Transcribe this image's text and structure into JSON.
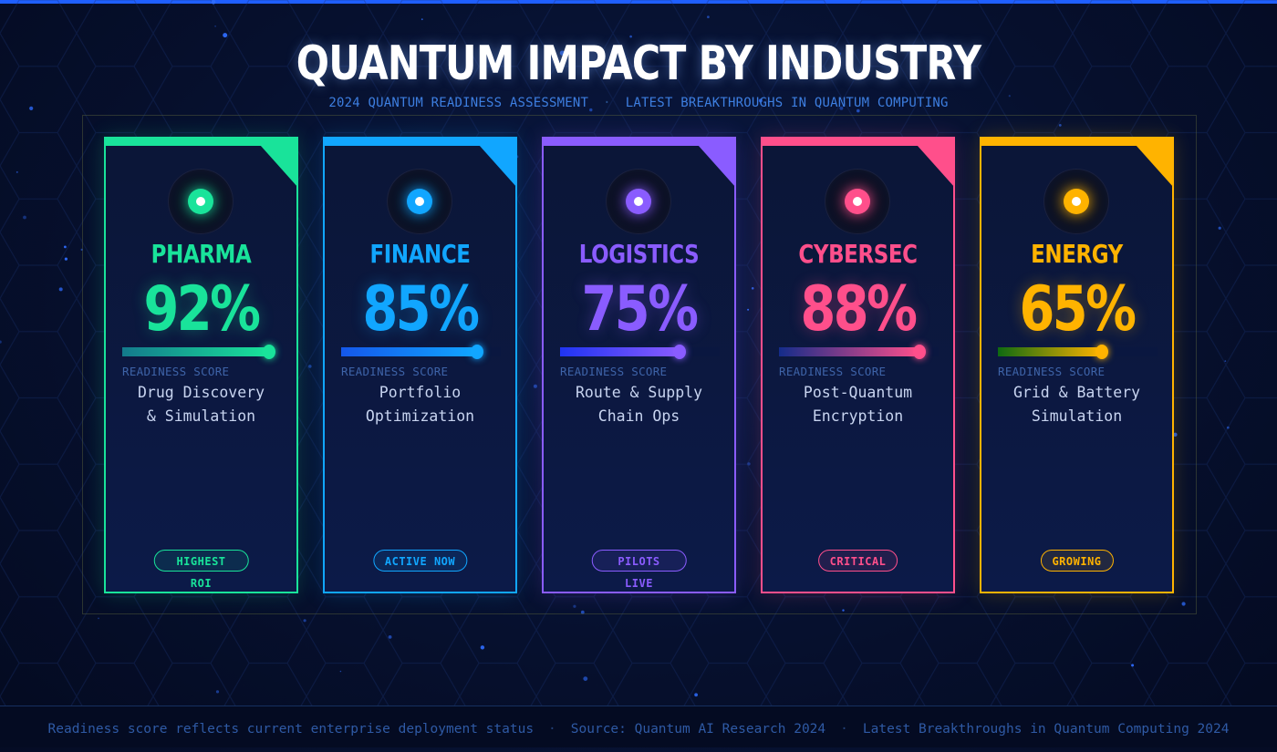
{
  "title": "QUANTUM IMPACT BY INDUSTRY",
  "subtitle": {
    "left": "2024 QUANTUM READINESS ASSESSMENT",
    "separator": "·",
    "right": "LATEST BREAKTHROUGHS IN QUANTUM COMPUTING"
  },
  "score_label": "READINESS SCORE",
  "chart_data": {
    "type": "bar",
    "title": "QUANTUM IMPACT BY INDUSTRY",
    "categories": [
      "PHARMA",
      "FINANCE",
      "LOGISTICS",
      "CYBERSEC",
      "ENERGY"
    ],
    "values": [
      92,
      85,
      75,
      88,
      65
    ],
    "value_suffix": "%",
    "ylim": [
      0,
      100
    ]
  },
  "cards": [
    {
      "name": "PHARMA",
      "score": "92%",
      "value": 92,
      "desc1": "Drug Discovery",
      "desc2": "& Simulation",
      "badge": "HIGHEST ROI",
      "color": "#19e39a",
      "color_start": "#137a8c"
    },
    {
      "name": "FINANCE",
      "score": "85%",
      "value": 85,
      "desc1": "Portfolio",
      "desc2": "Optimization",
      "badge": "ACTIVE NOW",
      "color": "#11a6ff",
      "color_start": "#1457ea"
    },
    {
      "name": "LOGISTICS",
      "score": "75%",
      "value": 75,
      "desc1": "Route & Supply",
      "desc2": "Chain Ops",
      "badge": "PILOTS LIVE",
      "color": "#8a5cff",
      "color_start": "#1f34f2"
    },
    {
      "name": "CYBERSEC",
      "score": "88%",
      "value": 88,
      "desc1": "Post-Quantum",
      "desc2": "Encryption",
      "badge": "CRITICAL",
      "color": "#ff4f8b",
      "color_start": "#142c8a"
    },
    {
      "name": "ENERGY",
      "score": "65%",
      "value": 65,
      "desc1": "Grid & Battery",
      "desc2": "Simulation",
      "badge": "GROWING",
      "color": "#ffb300",
      "color_start": "#0e6a11"
    }
  ],
  "footer": {
    "left": "Readiness score reflects current enterprise deployment status",
    "separator": "·",
    "middle": "Source: Quantum AI Research 2024",
    "right": "Latest Breakthroughs in Quantum Computing 2024"
  }
}
